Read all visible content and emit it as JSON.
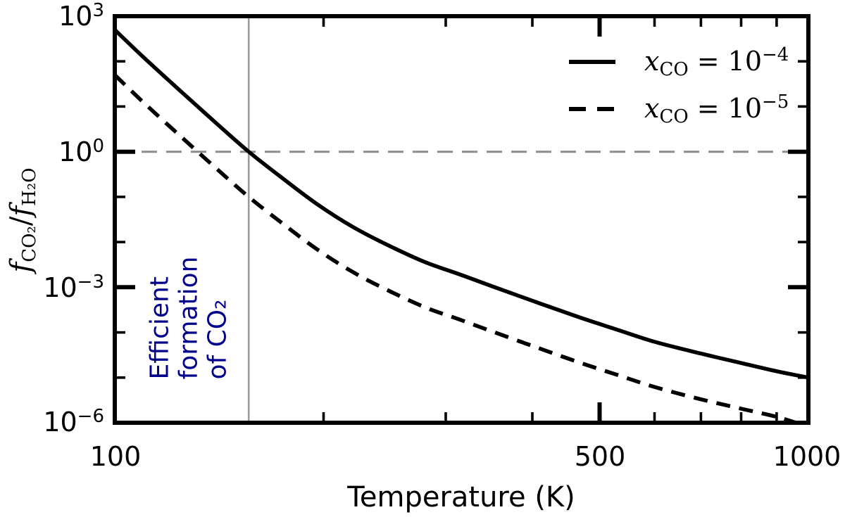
{
  "chart_data": {
    "type": "line",
    "x_scale": "log",
    "y_scale": "log",
    "xlim": [
      100,
      1000
    ],
    "ylim": [
      1e-06,
      1000
    ],
    "xlabel": "Temperature (K)",
    "ylabel": "f_CO2/f_H2O",
    "ylabel_parts": {
      "f1": "f",
      "sub1": "CO₂",
      "slash": "/",
      "f2": "f",
      "sub2": "H₂O"
    },
    "grid": "off",
    "frame_color": "#000000",
    "x_ticks": [
      {
        "value": 100,
        "label": "100"
      },
      {
        "value": 500,
        "label": "500"
      },
      {
        "value": 1000,
        "label": "1000"
      }
    ],
    "y_tick_base": "10",
    "y_ticks": [
      {
        "value": 1000,
        "exp": "3"
      },
      {
        "value": 1,
        "exp": "0"
      },
      {
        "value": 0.001,
        "exp": "−3"
      },
      {
        "value": 1e-06,
        "exp": "−6"
      }
    ],
    "series": [
      {
        "name": "x_CO = 10^-4",
        "line_style": "solid",
        "color": "#000000",
        "points": [
          [
            100,
            500
          ],
          [
            110,
            123
          ],
          [
            125,
            20.5
          ],
          [
            140,
            4.3
          ],
          [
            156,
            1.0
          ],
          [
            175,
            0.25
          ],
          [
            196,
            0.068
          ],
          [
            220,
            0.022
          ],
          [
            247,
            0.0087
          ],
          [
            280,
            0.0036
          ],
          [
            312,
            0.002
          ],
          [
            350,
            0.00105
          ],
          [
            408,
            0.00045
          ],
          [
            470,
            0.00021
          ],
          [
            530,
            0.000115
          ],
          [
            600,
            6.2e-05
          ],
          [
            700,
            3.4e-05
          ],
          [
            800,
            2.1e-05
          ],
          [
            900,
            1.38e-05
          ],
          [
            1000,
            1e-05
          ]
        ]
      },
      {
        "name": "x_CO = 10^-5",
        "line_style": "dashed",
        "color": "#000000",
        "points": [
          [
            100,
            50
          ],
          [
            110,
            12.3
          ],
          [
            125,
            2.05
          ],
          [
            140,
            0.43
          ],
          [
            156,
            0.1
          ],
          [
            175,
            0.025
          ],
          [
            196,
            0.0068
          ],
          [
            220,
            0.0022
          ],
          [
            247,
            0.00087
          ],
          [
            280,
            0.00036
          ],
          [
            312,
            0.0002
          ],
          [
            350,
            0.000105
          ],
          [
            408,
            4.5e-05
          ],
          [
            470,
            2.1e-05
          ],
          [
            530,
            1.15e-05
          ],
          [
            600,
            6.2e-06
          ],
          [
            700,
            3.3e-06
          ],
          [
            800,
            2.05e-06
          ],
          [
            900,
            1.35e-06
          ],
          [
            950,
            1.05e-06
          ],
          [
            1000,
            8.2e-07
          ]
        ]
      }
    ],
    "reference_lines": [
      {
        "orientation": "horizontal",
        "value": 1,
        "style": "dashed",
        "color": "#8c8c8c"
      },
      {
        "orientation": "vertical",
        "value": 156,
        "style": "solid",
        "color": "#9b9b9b"
      }
    ],
    "annotation": {
      "lines": [
        "Efficient",
        "formation",
        "of CO₂"
      ],
      "color": "#00008b"
    },
    "legend": {
      "position": "upper right",
      "entries": [
        {
          "var": "x",
          "sub": "CO",
          "rest": " = 10",
          "exp": "−4",
          "line_style": "solid"
        },
        {
          "var": "x",
          "sub": "CO",
          "rest": " = 10",
          "exp": "−5",
          "line_style": "dashed"
        }
      ]
    }
  }
}
